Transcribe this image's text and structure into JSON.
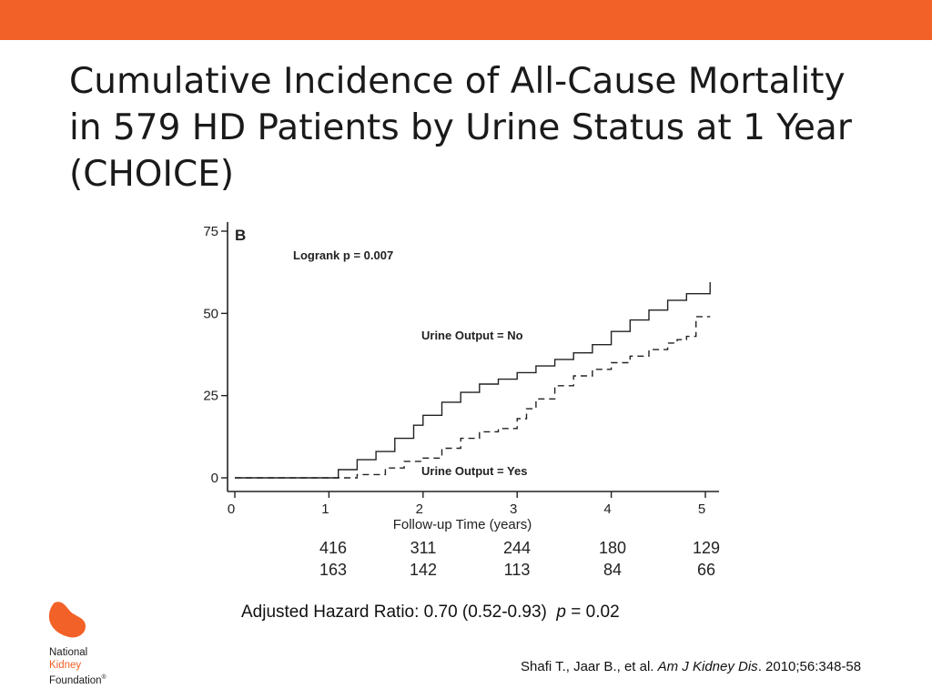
{
  "colors": {
    "accent": "#f26128",
    "text": "#1a1a1a"
  },
  "slide": {
    "title_lines": [
      "Cumulative Incidence of All-Cause Mortality",
      "in 579 HD Patients by Urine Status at 1 Year",
      "(CHOICE)"
    ]
  },
  "chart_data": {
    "type": "line",
    "panel_label": "B",
    "xlabel": "Follow-up Time (years)",
    "ylabel": "",
    "xlim": [
      0,
      5
    ],
    "ylim": [
      0,
      75
    ],
    "x_ticks": [
      0,
      1,
      2,
      3,
      4,
      5
    ],
    "y_ticks": [
      0,
      25,
      50,
      75
    ],
    "grid": false,
    "annotations": {
      "logrank": "Logrank p = 0.007",
      "urine_no": "Urine Output = No",
      "urine_yes": "Urine Output = Yes"
    },
    "series": [
      {
        "name": "Urine Output = No",
        "style": "solid",
        "x": [
          0,
          1.0,
          1.1,
          1.3,
          1.5,
          1.7,
          1.9,
          2.0,
          2.2,
          2.4,
          2.6,
          2.8,
          3.0,
          3.2,
          3.4,
          3.6,
          3.8,
          4.0,
          4.2,
          4.4,
          4.6,
          4.8,
          5.05
        ],
        "y": [
          0,
          0,
          2.5,
          5.5,
          8,
          12,
          16,
          19,
          23,
          26,
          28.5,
          30,
          32,
          34,
          36,
          38,
          40.5,
          44.5,
          48,
          51,
          54,
          56,
          59.5
        ]
      },
      {
        "name": "Urine Output = Yes",
        "style": "dashed",
        "x": [
          0,
          1.0,
          1.3,
          1.6,
          1.8,
          2.0,
          2.2,
          2.4,
          2.6,
          2.8,
          3.0,
          3.1,
          3.2,
          3.4,
          3.6,
          3.8,
          4.0,
          4.2,
          4.4,
          4.6,
          4.7,
          4.8,
          4.9,
          5.05
        ],
        "y": [
          0,
          0,
          1,
          3,
          5,
          6,
          9,
          12,
          14,
          15,
          18,
          21,
          24,
          28,
          31,
          33,
          35,
          37,
          39,
          41,
          42,
          43,
          49,
          49
        ]
      }
    ],
    "risk_table": [
      {
        "name": "Urine Output = No",
        "values": [
          "416",
          "311",
          "244",
          "180",
          "129"
        ]
      },
      {
        "name": "Urine Output = Yes",
        "values": [
          "163",
          "142",
          "113",
          "84",
          "66"
        ]
      }
    ]
  },
  "footer": {
    "hazard_ratio": "Adjusted Hazard Ratio: 0.70 (0.52-0.93)",
    "hazard_p_letter": "p",
    "hazard_p_value": "= 0.02",
    "citation_authors": "Shafi T., Jaar B., et al.",
    "citation_journal": "Am J Kidney Dis",
    "citation_rest": ". 2010;56:348-58"
  },
  "logo": {
    "line1": "National",
    "line2": "Kidney",
    "line3": "Foundation",
    "mark": "®"
  }
}
